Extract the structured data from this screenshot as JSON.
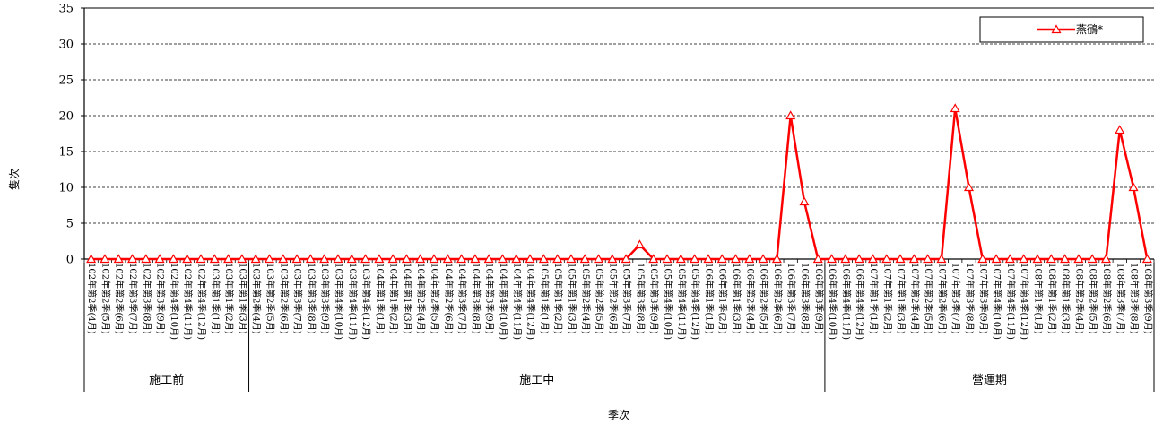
{
  "chart_data": {
    "type": "line",
    "title": "",
    "xlabel": "季次",
    "ylabel": "隻次",
    "ylim": [
      0,
      35
    ],
    "yticks": [
      0,
      5,
      10,
      15,
      20,
      25,
      30,
      35
    ],
    "grid": "horizontal dashed",
    "legend_position": "top-right",
    "categories": [
      "102年第2季(4月)",
      "102年第2季(5月)",
      "102年第2季(6月)",
      "102年第3季(7月)",
      "102年第3季(8月)",
      "102年第3季(9月)",
      "102年第4季(10月)",
      "102年第4季(11月)",
      "102年第4季(12月)",
      "103年第1季(1月)",
      "103年第1季(2月)",
      "103年第1季(3月)",
      "103年第2季(4月)",
      "103年第2季(5月)",
      "103年第2季(6月)",
      "103年第3季(7月)",
      "103年第3季(8月)",
      "103年第3季(9月)",
      "103年第4季(10月)",
      "103年第4季(11月)",
      "103年第4季(12月)",
      "104年第1季(1月)",
      "104年第1季(2月)",
      "104年第1季(3月)",
      "104年第2季(4月)",
      "104年第2季(5月)",
      "104年第2季(6月)",
      "104年第3季(7月)",
      "104年第3季(8月)",
      "104年第3季(9月)",
      "104年第4季(10月)",
      "104年第4季(11月)",
      "104年第4季(12月)",
      "105年第1季(1月)",
      "105年第1季(2月)",
      "105年第1季(3月)",
      "105年第2季(4月)",
      "105年第2季(5月)",
      "105年第2季(6月)",
      "105年第3季(7月)",
      "105年第3季(8月)",
      "105年第3季(9月)",
      "105年第4季(10月)",
      "105年第4季(11月)",
      "105年第4季(12月)",
      "106年第1季(1月)",
      "106年第1季(2月)",
      "106年第1季(3月)",
      "106年第2季(4月)",
      "106年第2季(5月)",
      "106年第2季(6月)",
      "106年第3季(7月)",
      "106年第3季(8月)",
      "106年第3季(9月)",
      "106年第4季(10月)",
      "106年第4季(11月)",
      "106年第4季(12月)",
      "107年第1季(1月)",
      "107年第1季(2月)",
      "107年第1季(3月)",
      "107年第2季(4月)",
      "107年第2季(5月)",
      "107年第2季(6月)",
      "107年第3季(7月)",
      "107年第3季(8月)",
      "107年第3季(9月)",
      "107年第4季(10月)",
      "107年第4季(11月)",
      "107年第4季(12月)",
      "108年第1季(1月)",
      "108年第1季(2月)",
      "108年第1季(3月)",
      "108年第2季(4月)",
      "108年第2季(5月)",
      "108年第2季(6月)",
      "108年第3季(7月)",
      "108年第3季(8月)",
      "108年第3季(9月)"
    ],
    "series": [
      {
        "name": "燕鴴*",
        "color": "#ff0000",
        "marker": "open-triangle",
        "values": [
          0,
          0,
          0,
          0,
          0,
          0,
          0,
          0,
          0,
          0,
          0,
          0,
          0,
          0,
          0,
          0,
          0,
          0,
          0,
          0,
          0,
          0,
          0,
          0,
          0,
          0,
          0,
          0,
          0,
          0,
          0,
          0,
          0,
          0,
          0,
          0,
          0,
          0,
          0,
          0,
          2,
          0,
          0,
          0,
          0,
          0,
          0,
          0,
          0,
          0,
          0,
          20,
          8,
          0,
          0,
          0,
          0,
          0,
          0,
          0,
          0,
          0,
          0,
          21,
          10,
          0,
          0,
          0,
          0,
          0,
          0,
          0,
          0,
          0,
          0,
          18,
          10,
          0
        ]
      }
    ],
    "periods": [
      {
        "label": "施工前",
        "start": 0,
        "end": 11
      },
      {
        "label": "施工中",
        "start": 12,
        "end": 53
      },
      {
        "label": "營運期",
        "start": 54,
        "end": 77
      }
    ]
  }
}
